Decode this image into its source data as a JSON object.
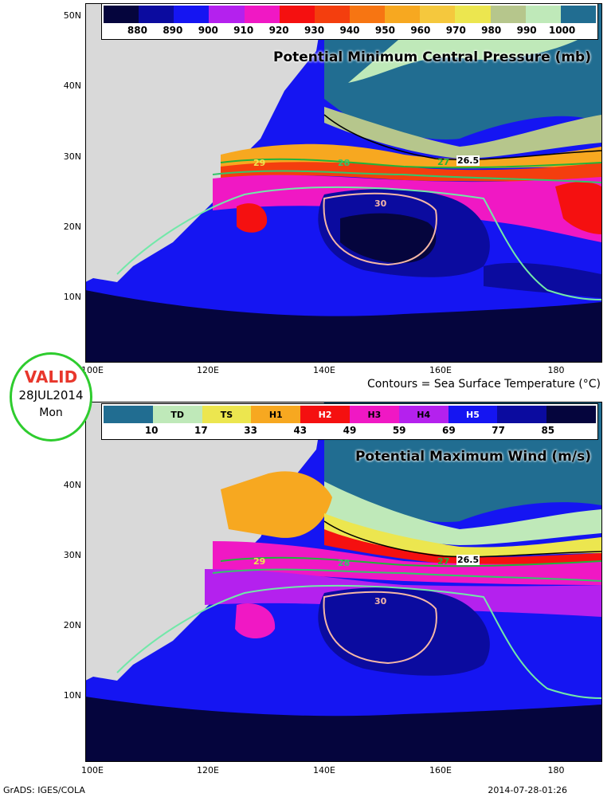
{
  "valid_badge": {
    "label": "VALID",
    "date": "28JUL2014",
    "weekday": "Mon"
  },
  "top_panel": {
    "title": "Potential Minimum Central Pressure (mb)",
    "legend_values": [
      "880",
      "890",
      "900",
      "910",
      "920",
      "930",
      "940",
      "950",
      "960",
      "970",
      "980",
      "990",
      "1000"
    ],
    "legend_colors": [
      "#05053d",
      "#0b0b9f",
      "#1515f2",
      "#b421ee",
      "#f018c4",
      "#f51010",
      "#f43e0e",
      "#f77512",
      "#f7a820",
      "#f5c83d",
      "#ece64f",
      "#b6c68c",
      "#bfe9b9",
      "#216d91"
    ]
  },
  "contour_note": "Contours = Sea Surface Temperature (°C)",
  "bottom_panel": {
    "title": "Potential Maximum Wind (m/s)",
    "legend_categories": [
      "",
      "TD",
      "TS",
      "H1",
      "H2",
      "H3",
      "H4",
      "H5",
      "",
      ""
    ],
    "legend_values": [
      "10",
      "17",
      "33",
      "43",
      "49",
      "59",
      "69",
      "77",
      "85"
    ],
    "legend_colors": [
      "#216d91",
      "#bfe9b9",
      "#ece64f",
      "#f7a820",
      "#f51010",
      "#f018c4",
      "#b421ee",
      "#1515f2",
      "#0b0b9f",
      "#05053d"
    ]
  },
  "lat_labels_top": [
    "50N",
    "40N",
    "30N",
    "20N",
    "10N"
  ],
  "lat_labels_bottom": [
    "40N",
    "30N",
    "20N",
    "10N"
  ],
  "lon_labels": [
    "100E",
    "120E",
    "140E",
    "160E",
    "180"
  ],
  "sst_contour_labels": [
    "26.5",
    "27",
    "28",
    "29",
    "30"
  ],
  "footer": {
    "left": "GrADS: IGES/COLA",
    "right": "2014-07-28-01:26"
  }
}
